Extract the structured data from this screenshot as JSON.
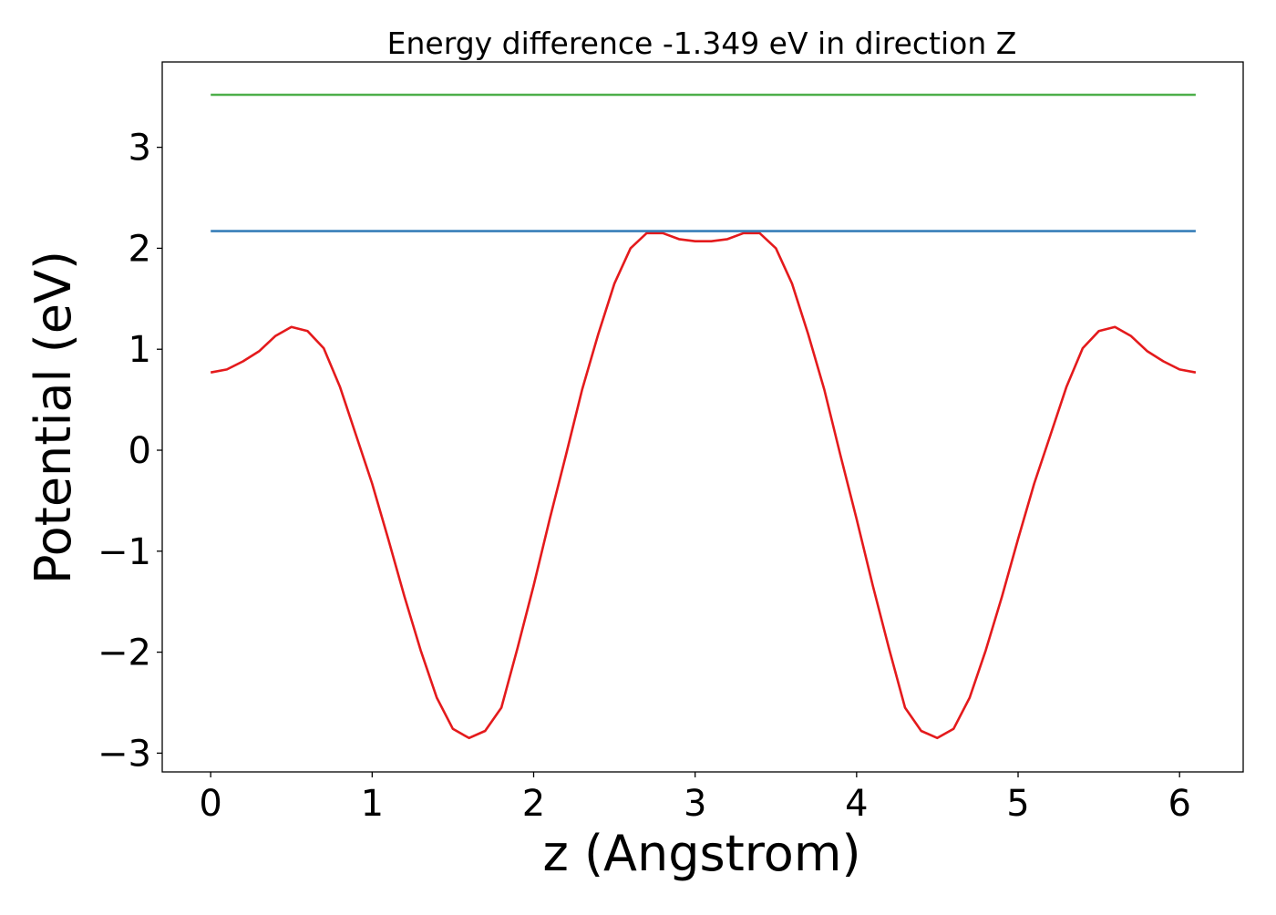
{
  "chart_data": {
    "type": "line",
    "title": "Energy difference -1.349 eV in direction Z",
    "xlabel": "z (Angstrom)",
    "ylabel": "Potential (eV)",
    "xlim": [
      -0.3,
      6.394
    ],
    "ylim": [
      -3.186,
      3.845
    ],
    "xticks": [
      0,
      1,
      2,
      3,
      4,
      5,
      6
    ],
    "yticks": [
      -3,
      -2,
      -1,
      0,
      1,
      2,
      3
    ],
    "xtick_labels": [
      "0",
      "1",
      "2",
      "3",
      "4",
      "5",
      "6"
    ],
    "ytick_labels": [
      "−3",
      "−2",
      "−1",
      "0",
      "1",
      "2",
      "3"
    ],
    "grid": false,
    "series": [
      {
        "color": "#e41a1c",
        "x": [
          0,
          0.1,
          0.2,
          0.3,
          0.4,
          0.5,
          0.6,
          0.7,
          0.8,
          0.9,
          1.0,
          1.1,
          1.2,
          1.3,
          1.4,
          1.5,
          1.6,
          1.7,
          1.8,
          1.9,
          2.0,
          2.1,
          2.2,
          2.3,
          2.4,
          2.5,
          2.6,
          2.7,
          2.8,
          2.9,
          3.0,
          3.1,
          3.2,
          3.3,
          3.4,
          3.5,
          3.6,
          3.7,
          3.8,
          3.9,
          4.0,
          4.1,
          4.2,
          4.3,
          4.4,
          4.5,
          4.6,
          4.7,
          4.8,
          4.9,
          5.0,
          5.1,
          5.2,
          5.3,
          5.4,
          5.5,
          5.6,
          5.7,
          5.8,
          5.9,
          6.0,
          6.1
        ],
        "y": [
          0.77,
          0.8,
          0.88,
          0.98,
          1.13,
          1.22,
          1.18,
          1.01,
          0.63,
          0.15,
          -0.33,
          -0.88,
          -1.45,
          -1.98,
          -2.45,
          -2.76,
          -2.85,
          -2.78,
          -2.55,
          -1.96,
          -1.34,
          -0.68,
          -0.05,
          0.6,
          1.15,
          1.65,
          2.0,
          2.15,
          2.15,
          2.09,
          2.07,
          2.07,
          2.09,
          2.15,
          2.15,
          2.0,
          1.65,
          1.15,
          0.6,
          -0.05,
          -0.68,
          -1.34,
          -1.96,
          -2.55,
          -2.78,
          -2.85,
          -2.76,
          -2.45,
          -1.98,
          -1.45,
          -0.88,
          -0.33,
          0.15,
          0.63,
          1.01,
          1.18,
          1.22,
          1.13,
          0.98,
          0.88,
          0.8,
          0.77
        ]
      },
      {
        "color": "#377eb8",
        "x": [
          0,
          6.1
        ],
        "y": [
          2.17,
          2.17
        ]
      },
      {
        "color": "#4daf4a",
        "x": [
          0,
          6.1
        ],
        "y": [
          3.52,
          3.52
        ]
      }
    ]
  }
}
